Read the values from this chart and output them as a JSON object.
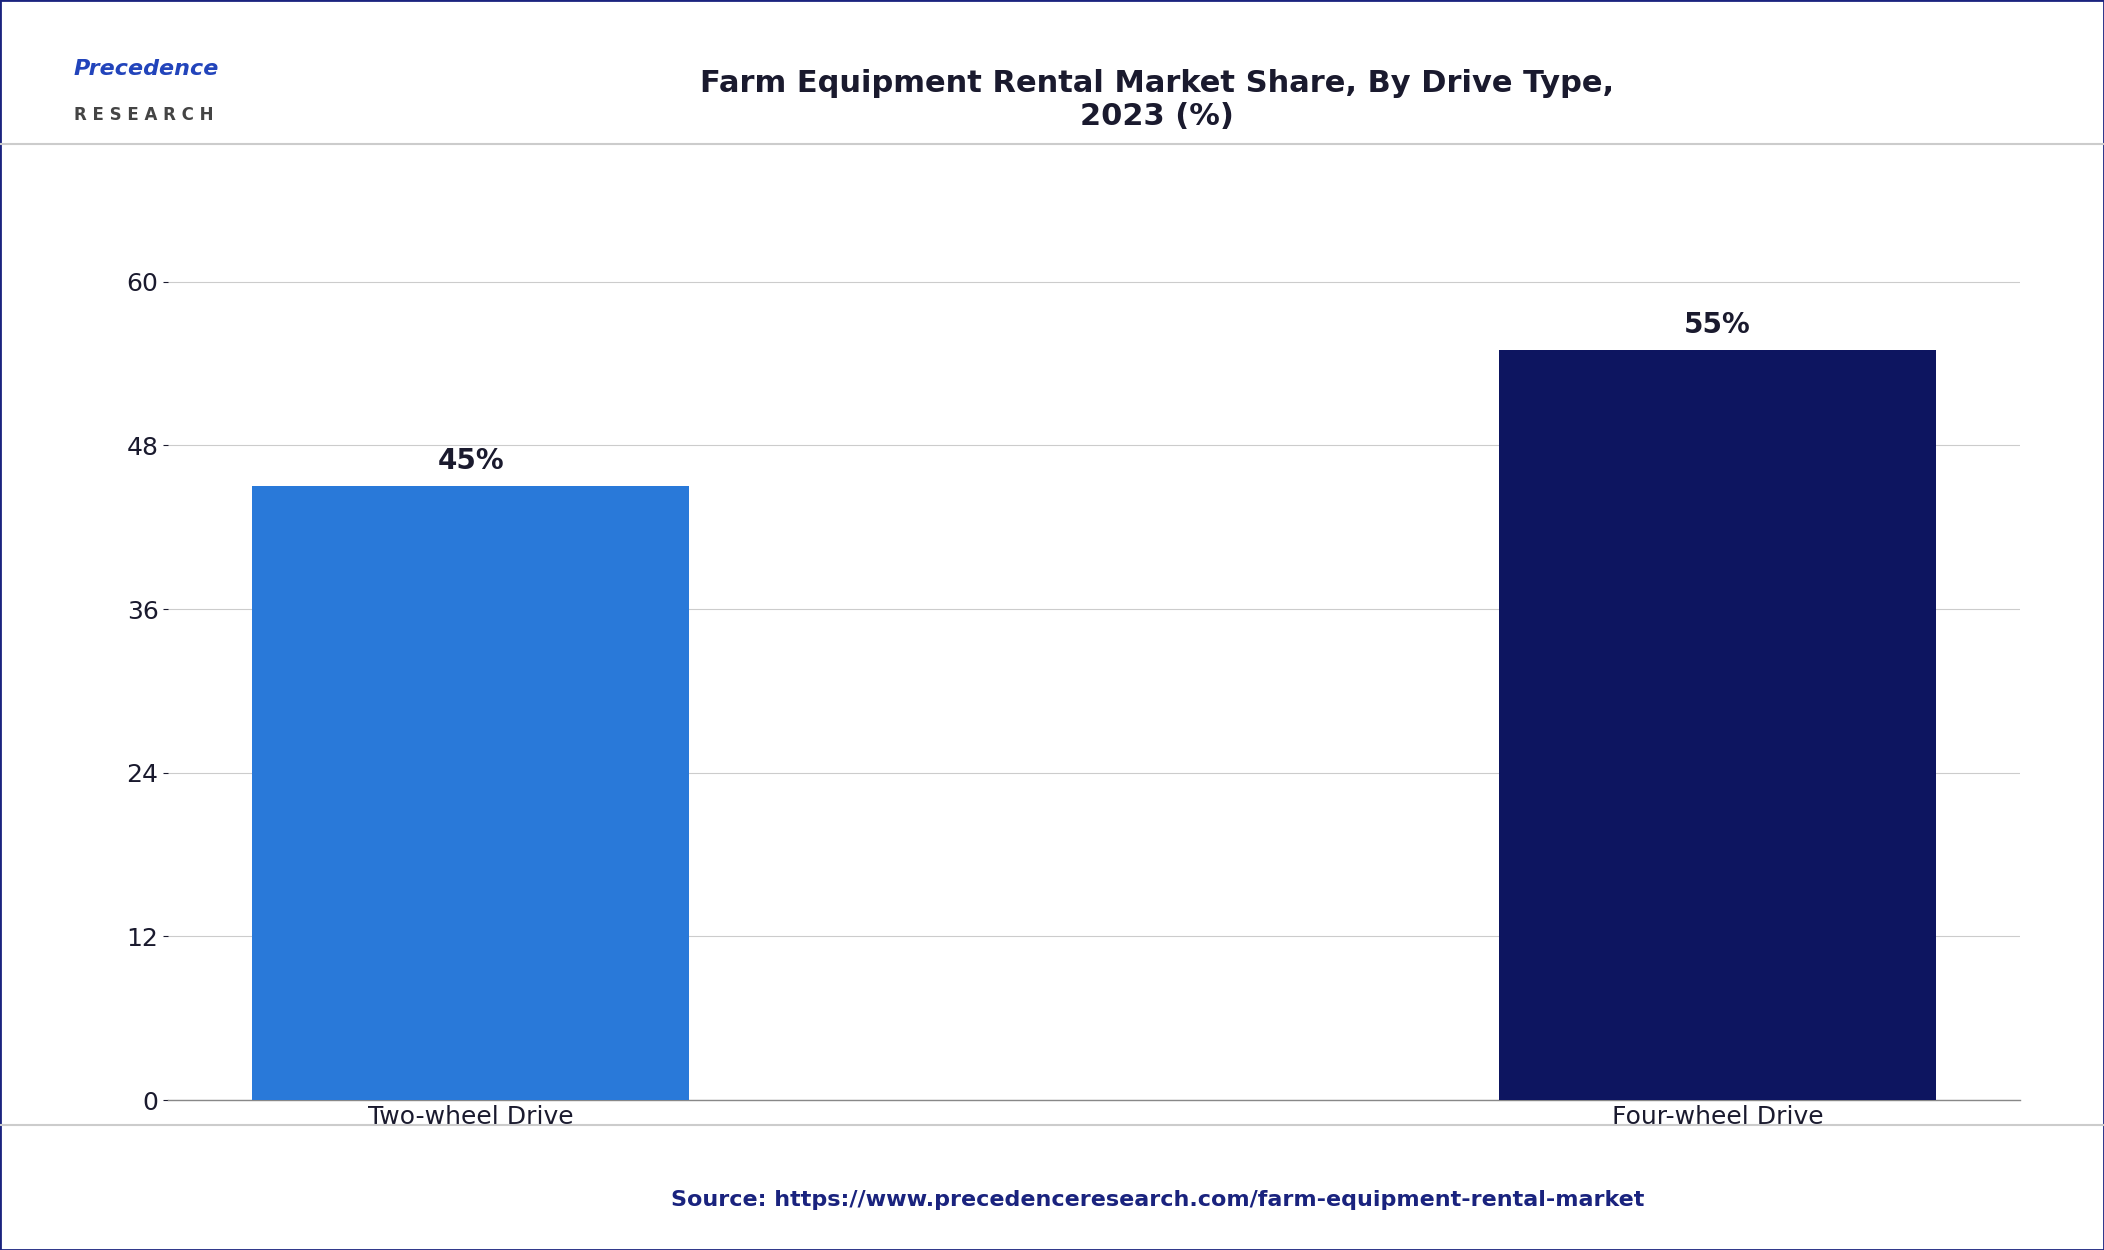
{
  "title": "Farm Equipment Rental Market Share, By Drive Type,\n2023 (%)",
  "categories": [
    "Two-wheel Drive",
    "Four-wheel Drive"
  ],
  "values": [
    45,
    55
  ],
  "labels": [
    "45%",
    "55%"
  ],
  "bar_colors": [
    "#2979D9",
    "#0D1560"
  ],
  "ylim": [
    0,
    66
  ],
  "yticks": [
    0,
    12,
    24,
    36,
    48,
    60
  ],
  "background_color": "#FFFFFF",
  "plot_bg_color": "#FFFFFF",
  "grid_color": "#CCCCCC",
  "title_color": "#1a1a2e",
  "tick_label_color": "#1a1a2e",
  "source_text": "Source: https://www.precedenceresearch.com/farm-equipment-rental-market",
  "source_color": "#1a237e",
  "title_fontsize": 22,
  "tick_fontsize": 18,
  "label_fontsize": 20,
  "source_fontsize": 16,
  "bar_width": 0.35,
  "border_color": "#1a237e",
  "border_width": 2,
  "logo_precedence_color": "#2244BB",
  "logo_research_color": "#444444",
  "separator_color": "#CCCCCC"
}
